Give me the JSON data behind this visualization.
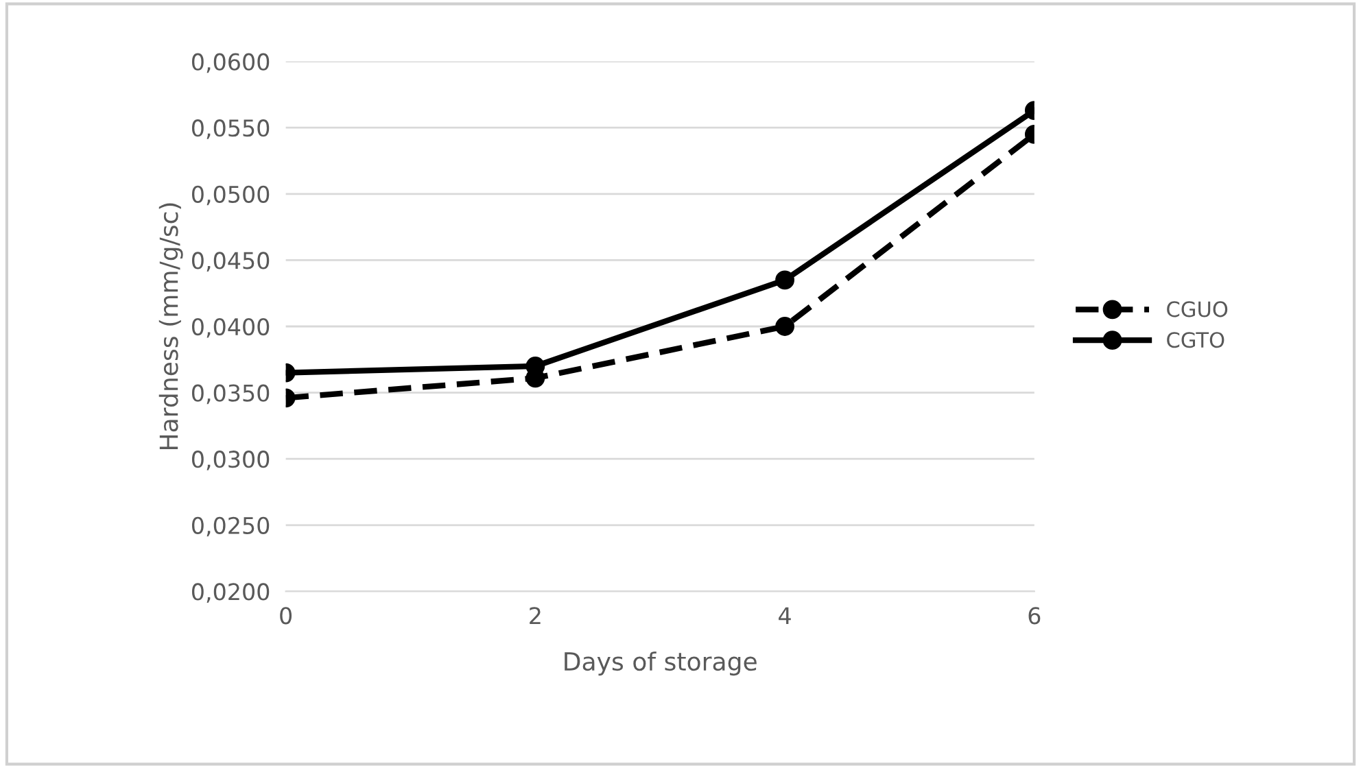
{
  "chart_data": {
    "type": "line",
    "xlabel": "Days of storage",
    "ylabel": "Hardness (mm/g/sc)",
    "x": [
      0,
      2,
      4,
      6
    ],
    "series": [
      {
        "name": "CGUO",
        "color": "#000000",
        "line_style": "dashed",
        "values": [
          0.0346,
          0.0361,
          0.04,
          0.0545
        ]
      },
      {
        "name": "CGTO",
        "color": "#000000",
        "line_style": "solid",
        "values": [
          0.0365,
          0.037,
          0.0435,
          0.0563
        ]
      }
    ],
    "xlim": [
      0,
      6
    ],
    "xticks": [
      0,
      2,
      4,
      6
    ],
    "ylim": [
      0.02,
      0.06
    ],
    "yticks": [
      {
        "value": 0.02,
        "label": "0,0200"
      },
      {
        "value": 0.025,
        "label": "0,0250"
      },
      {
        "value": 0.03,
        "label": "0,0300"
      },
      {
        "value": 0.035,
        "label": "0,0350"
      },
      {
        "value": 0.04,
        "label": "0,0400"
      },
      {
        "value": 0.045,
        "label": "0,0450"
      },
      {
        "value": 0.05,
        "label": "0,0500"
      },
      {
        "value": 0.055,
        "label": "0,0550"
      },
      {
        "value": 0.06,
        "label": "0,0600"
      }
    ],
    "grid": "y",
    "legend": "right",
    "marker": "circle"
  }
}
